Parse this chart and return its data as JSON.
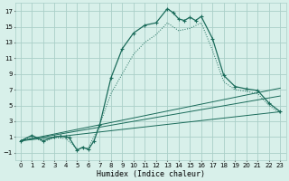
{
  "xlabel": "Humidex (Indice chaleur)",
  "bg_color": "#d8f0ea",
  "grid_color": "#aacfc8",
  "line_color": "#1a6b5a",
  "xlim": [
    -0.5,
    23.5
  ],
  "ylim": [
    -2,
    18
  ],
  "xticks": [
    0,
    1,
    2,
    3,
    4,
    5,
    6,
    7,
    8,
    9,
    10,
    11,
    12,
    13,
    14,
    15,
    16,
    17,
    18,
    19,
    20,
    21,
    22,
    23
  ],
  "yticks": [
    -1,
    1,
    3,
    5,
    7,
    9,
    11,
    13,
    15,
    17
  ],
  "main_series_x": [
    0,
    1,
    2,
    3,
    3.5,
    4,
    4.3,
    5,
    5.5,
    6,
    6.5,
    7,
    8,
    9,
    10,
    11,
    12,
    13,
    13.5,
    14,
    14.5,
    15,
    15.5,
    16,
    17,
    18,
    19,
    20,
    21,
    22,
    23
  ],
  "main_series_y": [
    0.5,
    1.2,
    0.5,
    1.0,
    1.1,
    1.0,
    0.9,
    -0.7,
    -0.3,
    -0.6,
    0.5,
    2.5,
    8.5,
    12.2,
    14.2,
    15.2,
    15.5,
    17.3,
    16.8,
    16.0,
    15.8,
    16.2,
    15.8,
    16.3,
    13.5,
    8.8,
    7.4,
    7.1,
    6.9,
    5.3,
    4.2
  ],
  "dotted_series_x": [
    0,
    1,
    2,
    3,
    4,
    5,
    6,
    7,
    8,
    9,
    10,
    11,
    12,
    13,
    14,
    15,
    16,
    17,
    18,
    19,
    20,
    21,
    22,
    23
  ],
  "dotted_series_y": [
    0.5,
    1.0,
    0.4,
    0.9,
    0.8,
    -0.5,
    -0.4,
    2.5,
    6.5,
    9.0,
    11.5,
    13.0,
    14.0,
    15.5,
    14.5,
    14.8,
    15.5,
    12.0,
    8.0,
    7.0,
    6.8,
    6.5,
    5.0,
    4.0
  ],
  "line1_x": [
    0,
    23
  ],
  "line1_y": [
    0.5,
    4.2
  ],
  "line2_x": [
    0,
    23
  ],
  "line2_y": [
    0.5,
    6.2
  ],
  "line3_x": [
    0,
    23
  ],
  "line3_y": [
    0.5,
    7.2
  ]
}
